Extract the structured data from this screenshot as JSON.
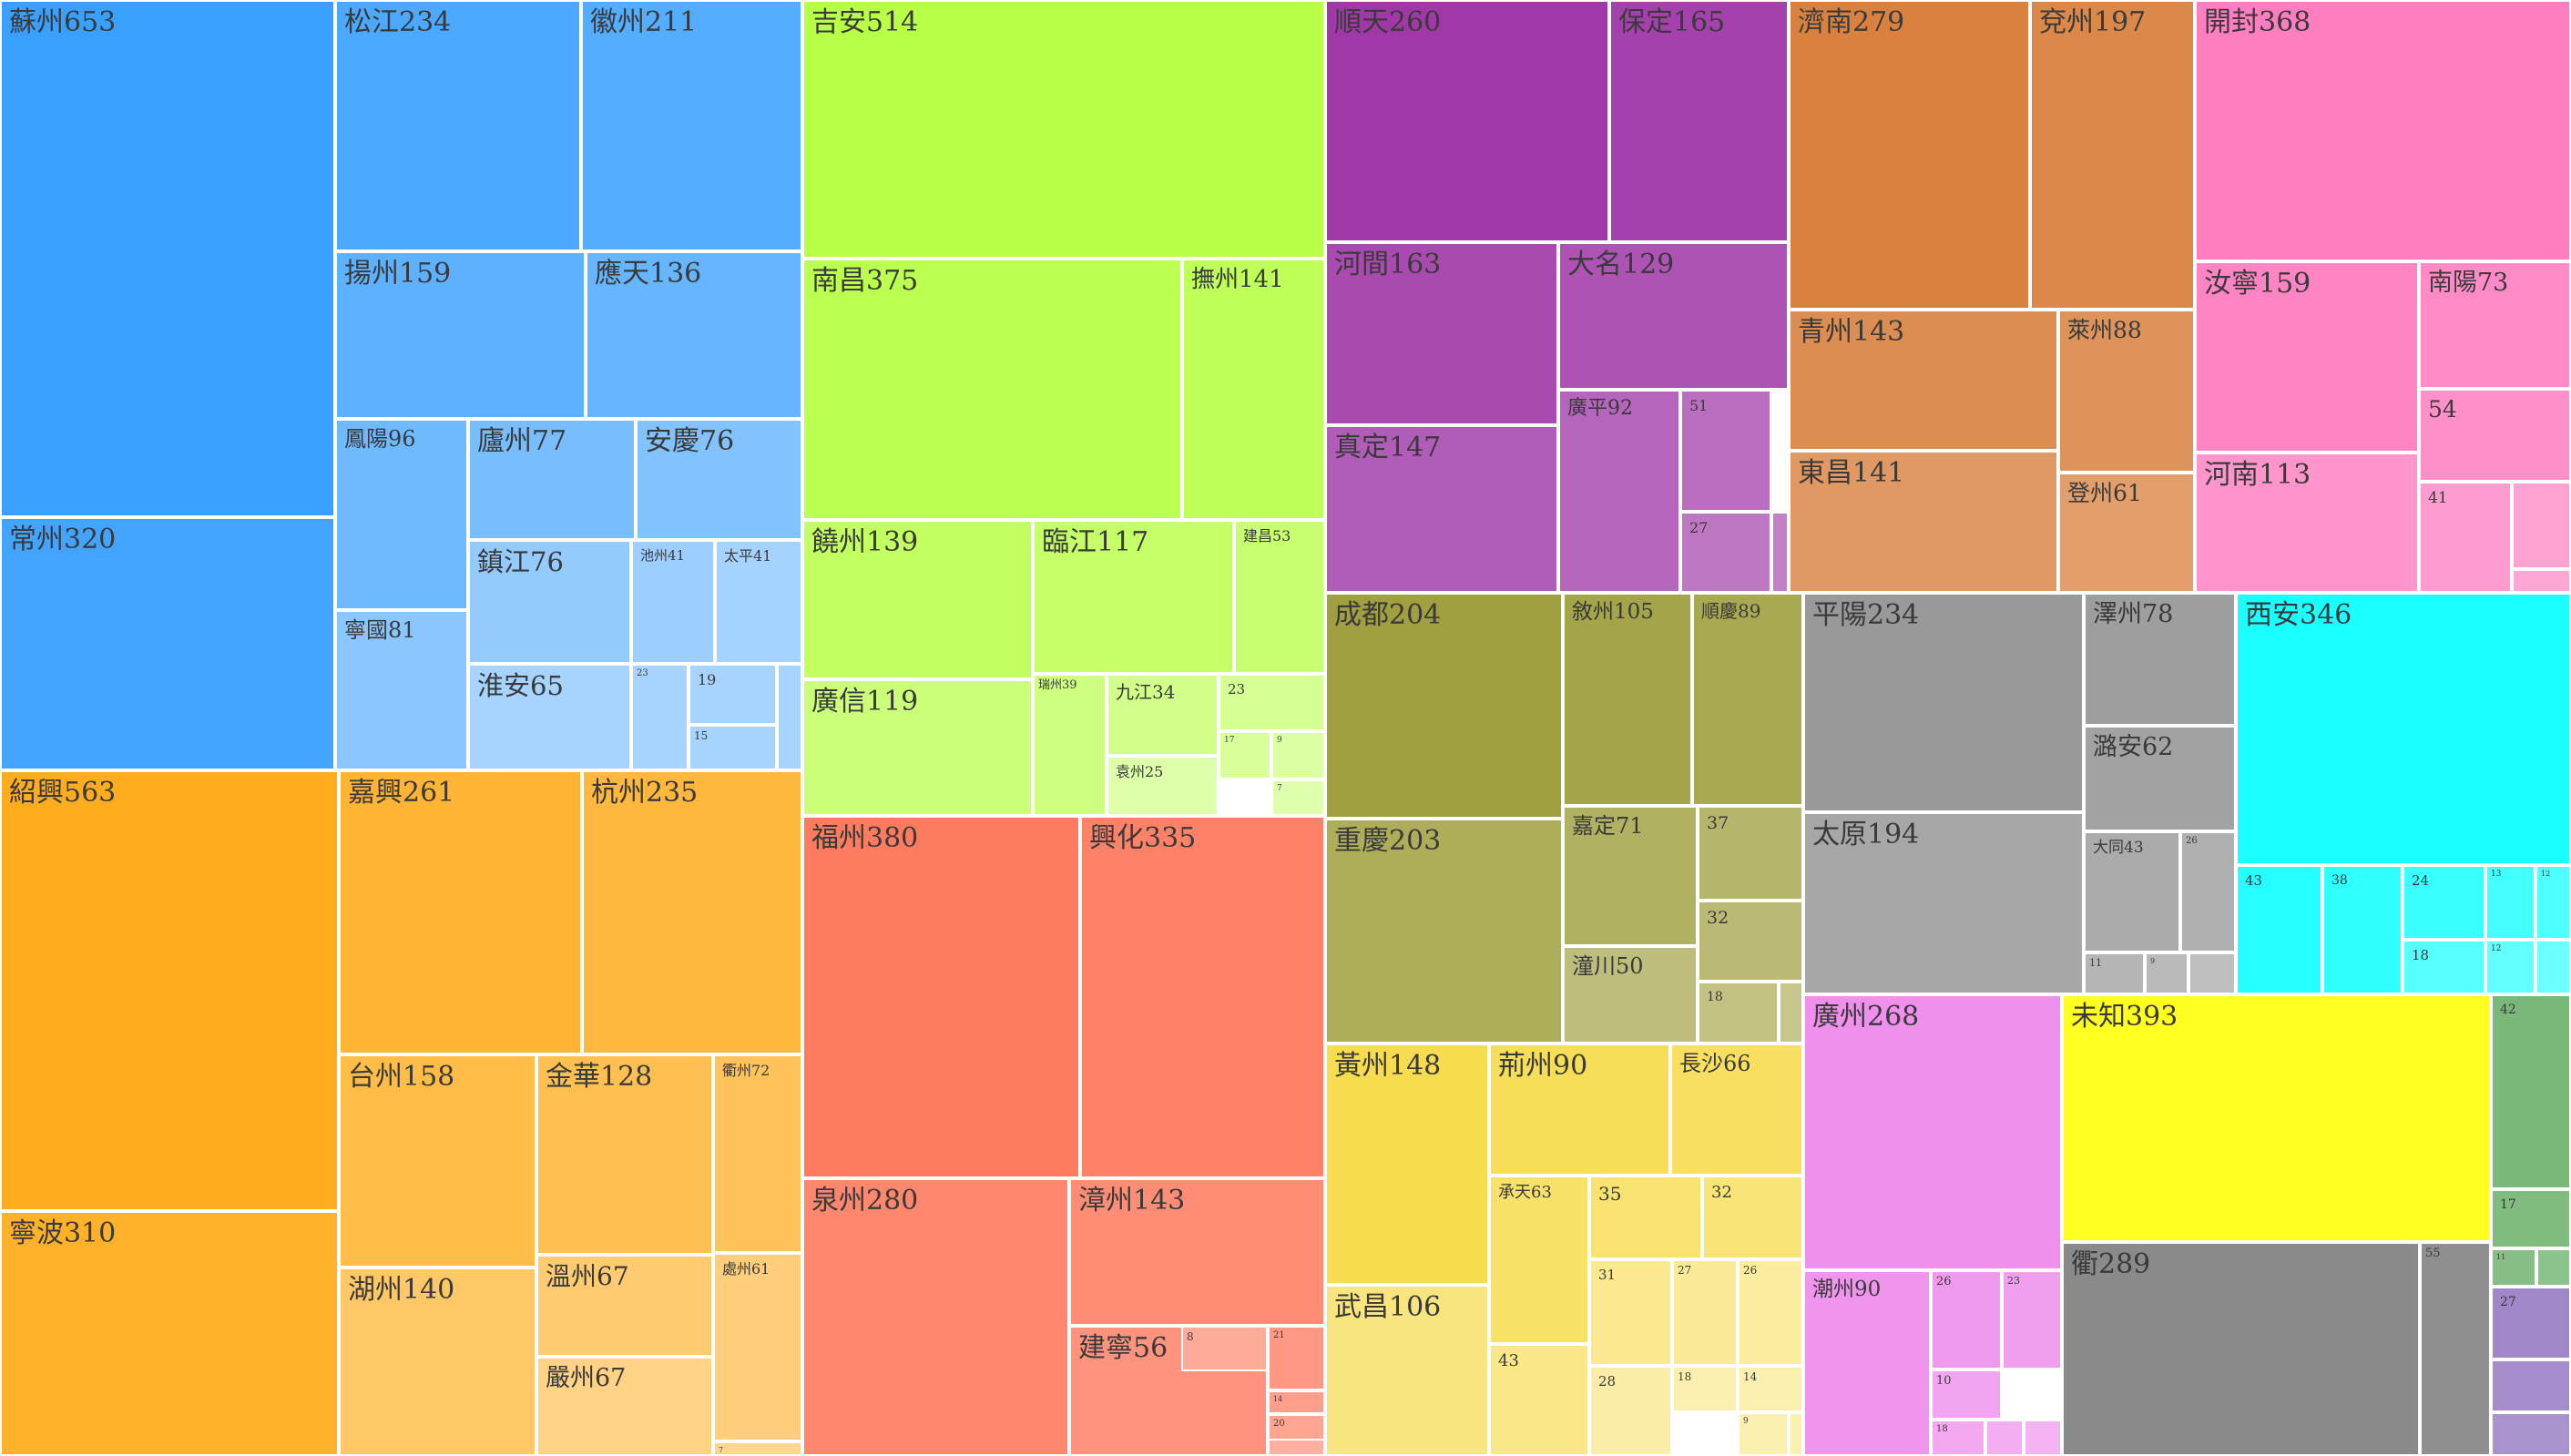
{
  "chart_data": {
    "type": "treemap",
    "groups": [
      {
        "color": "#3aa0ff",
        "items": [
          [
            "蘇州",
            653
          ],
          [
            "常州",
            320
          ],
          [
            "松江",
            234
          ],
          [
            "徽州",
            211
          ],
          [
            "揚州",
            159
          ],
          [
            "應天",
            136
          ],
          [
            "鳳陽",
            96
          ],
          [
            "廬州",
            77
          ],
          [
            "安慶",
            76
          ],
          [
            "寧國",
            81
          ],
          [
            "鎮江",
            76
          ],
          [
            "池州",
            41
          ],
          [
            "太平",
            41
          ],
          [
            "淮安",
            65
          ],
          [
            "",
            23
          ],
          [
            "",
            19
          ],
          [
            "",
            15
          ],
          [
            "",
            0
          ]
        ]
      },
      {
        "color": "#ffad1f",
        "items": [
          [
            "紹興",
            563
          ],
          [
            "寧波",
            310
          ],
          [
            "嘉興",
            261
          ],
          [
            "杭州",
            235
          ],
          [
            "台州",
            158
          ],
          [
            "金華",
            128
          ],
          [
            "衢州",
            72
          ],
          [
            "湖州",
            140
          ],
          [
            "溫州",
            67
          ],
          [
            "處州",
            61
          ],
          [
            "嚴州",
            67
          ],
          [
            "",
            7
          ]
        ]
      },
      {
        "color": "#b8ff47",
        "items": [
          [
            "吉安",
            514
          ],
          [
            "南昌",
            375
          ],
          [
            "撫州",
            141
          ],
          [
            "饒州",
            139
          ],
          [
            "臨江",
            117
          ],
          [
            "建昌",
            53
          ],
          [
            "廣信",
            119
          ],
          [
            "瑞州",
            39
          ],
          [
            "九江",
            34
          ],
          [
            "",
            23
          ],
          [
            "",
            17
          ],
          [
            "",
            9
          ],
          [
            "袁州",
            25
          ],
          [
            "",
            7
          ]
        ]
      },
      {
        "color": "#ff7b60",
        "items": [
          [
            "福州",
            380
          ],
          [
            "興化",
            335
          ],
          [
            "泉州",
            280
          ],
          [
            "漳州",
            143
          ],
          [
            "建寧",
            56
          ],
          [
            "",
            21
          ],
          [
            "",
            14
          ],
          [
            "",
            20
          ],
          [
            "",
            8
          ],
          [
            "",
            0
          ]
        ]
      },
      {
        "color": "#a038a8",
        "items": [
          [
            "順天",
            260
          ],
          [
            "保定",
            165
          ],
          [
            "河間",
            163
          ],
          [
            "大名",
            129
          ],
          [
            "真定",
            147
          ],
          [
            "廣平",
            92
          ],
          [
            "",
            51
          ],
          [
            "",
            27
          ],
          [
            "",
            0
          ]
        ]
      },
      {
        "color": "#d98240",
        "items": [
          [
            "濟南",
            279
          ],
          [
            "兗州",
            197
          ],
          [
            "青州",
            143
          ],
          [
            "萊州",
            88
          ],
          [
            "東昌",
            141
          ],
          [
            "登州",
            61
          ]
        ]
      },
      {
        "color": "#ff7ec0",
        "items": [
          [
            "開封",
            368
          ],
          [
            "汝寧",
            159
          ],
          [
            "南陽",
            73
          ],
          [
            "",
            54
          ],
          [
            "河南",
            113
          ],
          [
            "",
            41
          ],
          [
            "",
            0
          ],
          [
            "",
            0
          ]
        ]
      },
      {
        "color": "#a0a040",
        "items": [
          [
            "成都",
            204
          ],
          [
            "敘州",
            105
          ],
          [
            "順慶",
            89
          ],
          [
            "重慶",
            203
          ],
          [
            "嘉定",
            71
          ],
          [
            "",
            37
          ],
          [
            "",
            32
          ],
          [
            "潼川",
            50
          ],
          [
            "",
            18
          ],
          [
            "",
            0
          ]
        ]
      },
      {
        "color": "#999999",
        "items": [
          [
            "平陽",
            234
          ],
          [
            "澤州",
            78
          ],
          [
            "潞安",
            62
          ],
          [
            "太原",
            194
          ],
          [
            "大同",
            43
          ],
          [
            "",
            26
          ],
          [
            "",
            11
          ],
          [
            "",
            9
          ],
          [
            "",
            0
          ]
        ]
      },
      {
        "color": "#1affff",
        "items": [
          [
            "西安",
            346
          ],
          [
            "",
            43
          ],
          [
            "",
            38
          ],
          [
            "",
            24
          ],
          [
            "",
            13
          ],
          [
            "",
            12
          ],
          [
            "",
            18
          ],
          [
            "",
            12
          ],
          [
            "",
            0
          ]
        ]
      },
      {
        "color": "#f7dc50",
        "items": [
          [
            "黃州",
            148
          ],
          [
            "荊州",
            90
          ],
          [
            "長沙",
            66
          ],
          [
            "承天",
            63
          ],
          [
            "",
            35
          ],
          [
            "",
            32
          ],
          [
            "武昌",
            106
          ],
          [
            "",
            43
          ],
          [
            "",
            31
          ],
          [
            "",
            27
          ],
          [
            "",
            26
          ],
          [
            "",
            28
          ],
          [
            "",
            18
          ],
          [
            "",
            14
          ],
          [
            "",
            9
          ],
          [
            "",
            0
          ]
        ]
      },
      {
        "color": "#ee90ec",
        "items": [
          [
            "廣州",
            268
          ],
          [
            "潮州",
            90
          ],
          [
            "",
            26
          ],
          [
            "",
            23
          ],
          [
            "",
            10
          ],
          [
            "",
            18
          ],
          [
            "",
            0
          ],
          [
            "",
            0
          ]
        ]
      },
      {
        "color": "#ffff20",
        "items": [
          [
            "未知",
            393
          ]
        ]
      },
      {
        "color": "#8a8a8a",
        "items": [
          [
            "衢",
            289
          ],
          [
            "",
            55
          ]
        ]
      },
      {
        "color": "#7ab87a",
        "items": [
          [
            "",
            42
          ],
          [
            "",
            17
          ],
          [
            "",
            11
          ],
          [
            "",
            0
          ]
        ]
      },
      {
        "color": "#a088c8",
        "items": [
          [
            "",
            27
          ],
          [
            "",
            0
          ],
          [
            "",
            0
          ]
        ]
      }
    ],
    "boxes": [
      [
        0,
        0,
        0,
        0
      ],
      [
        0,
        0,
        1,
        0
      ],
      [
        0,
        1,
        0,
        1
      ],
      [
        0,
        1,
        1,
        1
      ],
      [
        0,
        2,
        2,
        2
      ],
      [
        0,
        2,
        3,
        2
      ],
      [
        0,
        3,
        3,
        3
      ],
      [
        0,
        3,
        4,
        3
      ],
      [
        0,
        3,
        5,
        3
      ],
      [
        0,
        3,
        6,
        3
      ],
      [
        0,
        3,
        7,
        3
      ],
      [
        0,
        3,
        8,
        3
      ],
      [
        0,
        3,
        9,
        3
      ],
      [
        0,
        3,
        10,
        3
      ],
      [
        0,
        3,
        11,
        3
      ],
      [
        0,
        3,
        12,
        3
      ],
      [
        0,
        3,
        13,
        3
      ],
      [
        0,
        3,
        14,
        3
      ],
      [
        1,
        0,
        0,
        0
      ],
      [
        1,
        0,
        1,
        0
      ],
      [
        1,
        1,
        0,
        1
      ],
      [
        1,
        1,
        1,
        1
      ],
      [
        1,
        2,
        2,
        2
      ],
      [
        1,
        2,
        3,
        2
      ],
      [
        1,
        2,
        4,
        2
      ],
      [
        1,
        3,
        3,
        3
      ],
      [
        1,
        3,
        4,
        3
      ],
      [
        1,
        3,
        5,
        3
      ],
      [
        1,
        3,
        6,
        3
      ],
      [
        1,
        3,
        7,
        3
      ],
      [
        2,
        0,
        0,
        0
      ],
      [
        2,
        0,
        1,
        0
      ],
      [
        2,
        1,
        0,
        1
      ],
      [
        2,
        1,
        1,
        1
      ],
      [
        2,
        2,
        2,
        2
      ],
      [
        2,
        2,
        3,
        2
      ],
      [
        2,
        2,
        4,
        2
      ],
      [
        2,
        3,
        3,
        3
      ],
      [
        2,
        3,
        4,
        3
      ],
      [
        2,
        3,
        5,
        3
      ],
      [
        2,
        3,
        6,
        3
      ],
      [
        2,
        3,
        7,
        3
      ],
      [
        2,
        3,
        8,
        3
      ],
      [
        2,
        3,
        9,
        3
      ],
      [
        3,
        0,
        0,
        0
      ],
      [
        3,
        0,
        1,
        0
      ],
      [
        3,
        1,
        0,
        1
      ],
      [
        3,
        1,
        1,
        1
      ],
      [
        3,
        2,
        2,
        2
      ],
      [
        3,
        2,
        3,
        2
      ],
      [
        3,
        2,
        4,
        2
      ],
      [
        3,
        2,
        5,
        2
      ],
      [
        3,
        2,
        6,
        2
      ],
      [
        3,
        2,
        7,
        2
      ],
      [
        4,
        0,
        0,
        0
      ],
      [
        4,
        0,
        1,
        0
      ],
      [
        4,
        1,
        0,
        1
      ],
      [
        4,
        1,
        1,
        1
      ],
      [
        4,
        1,
        2,
        1
      ],
      [
        4,
        2,
        2,
        2
      ],
      [
        4,
        2,
        3,
        2
      ],
      [
        4,
        2,
        4,
        2
      ],
      [
        4,
        2,
        5,
        2
      ],
      [
        5,
        0,
        0,
        0
      ],
      [
        5,
        0,
        1,
        0
      ],
      [
        5,
        1,
        1,
        1
      ],
      [
        5,
        1,
        2,
        1
      ],
      [
        5,
        2,
        1,
        2
      ],
      [
        5,
        2,
        2,
        2
      ],
      [
        6,
        0,
        0,
        0
      ],
      [
        6,
        1,
        0,
        1
      ],
      [
        6,
        1,
        1,
        1
      ],
      [
        6,
        1,
        2,
        1
      ],
      [
        6,
        2,
        0,
        2
      ],
      [
        6,
        2,
        1,
        2
      ],
      [
        6,
        2,
        2,
        2
      ],
      [
        6,
        2,
        3,
        2
      ],
      [
        7,
        0,
        0,
        0
      ],
      [
        7,
        0,
        1,
        0
      ],
      [
        7,
        0,
        2,
        0
      ],
      [
        7,
        1,
        0,
        1
      ],
      [
        7,
        1,
        1,
        1
      ],
      [
        7,
        1,
        2,
        1
      ],
      [
        7,
        1,
        3,
        1
      ],
      [
        7,
        1,
        4,
        1
      ],
      [
        7,
        1,
        5,
        1
      ],
      [
        7,
        1,
        6,
        1
      ],
      [
        8,
        0,
        0,
        0
      ],
      [
        8,
        0,
        1,
        0
      ],
      [
        8,
        1,
        1,
        1
      ],
      [
        8,
        1,
        0,
        1
      ],
      [
        8,
        1,
        2,
        1
      ],
      [
        8,
        1,
        3,
        1
      ],
      [
        8,
        1,
        4,
        1
      ],
      [
        8,
        1,
        5,
        1
      ],
      [
        8,
        1,
        6,
        1
      ],
      [
        9,
        0,
        0,
        0
      ],
      [
        9,
        1,
        0,
        1
      ],
      [
        9,
        1,
        1,
        1
      ],
      [
        9,
        1,
        2,
        1
      ],
      [
        9,
        1,
        3,
        1
      ],
      [
        9,
        1,
        4,
        1
      ],
      [
        9,
        1,
        5,
        1
      ],
      [
        9,
        1,
        6,
        1
      ],
      [
        9,
        1,
        7,
        1
      ],
      [
        10,
        0,
        0,
        0
      ],
      [
        10,
        0,
        1,
        0
      ],
      [
        10,
        0,
        2,
        0
      ],
      [
        10,
        1,
        1,
        1
      ],
      [
        10,
        1,
        2,
        1
      ],
      [
        10,
        1,
        3,
        1
      ],
      [
        10,
        2,
        0,
        2
      ],
      [
        10,
        2,
        1,
        2
      ],
      [
        10,
        2,
        2,
        2
      ],
      [
        10,
        2,
        3,
        2
      ],
      [
        10,
        2,
        4,
        2
      ],
      [
        10,
        2,
        5,
        2
      ],
      [
        10,
        2,
        6,
        2
      ],
      [
        10,
        2,
        7,
        2
      ],
      [
        10,
        2,
        8,
        2
      ],
      [
        10,
        2,
        9,
        2
      ],
      [
        11,
        0,
        0,
        0
      ],
      [
        11,
        1,
        0,
        1
      ],
      [
        11,
        1,
        1,
        1
      ],
      [
        11,
        1,
        2,
        1
      ],
      [
        11,
        1,
        3,
        1
      ],
      [
        11,
        1,
        4,
        1
      ],
      [
        11,
        1,
        5,
        1
      ],
      [
        11,
        1,
        6,
        1
      ],
      [
        12,
        0,
        0,
        0
      ],
      [
        13,
        0,
        0,
        0
      ],
      [
        13,
        0,
        1,
        0
      ],
      [
        14,
        0,
        0,
        0
      ],
      [
        14,
        0,
        1,
        0
      ],
      [
        14,
        0,
        2,
        0
      ],
      [
        14,
        0,
        3,
        0
      ],
      [
        15,
        0,
        0,
        0
      ],
      [
        15,
        0,
        1,
        0
      ],
      [
        15,
        0,
        2,
        0
      ]
    ]
  }
}
